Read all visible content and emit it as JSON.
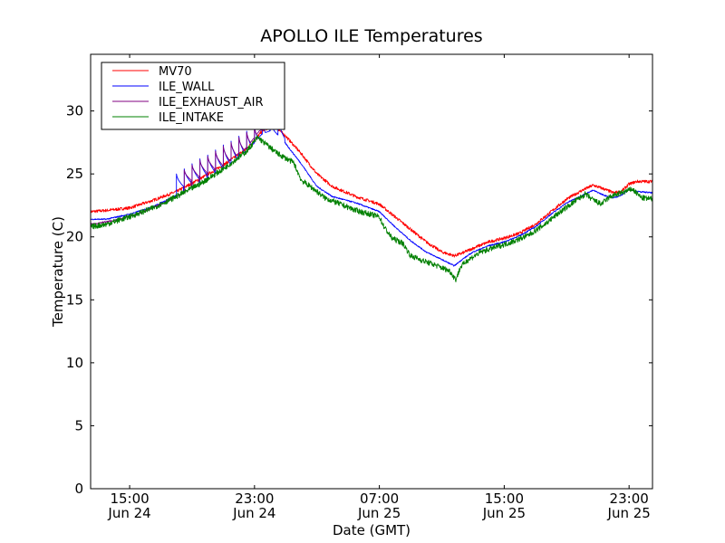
{
  "chart_data": {
    "type": "line",
    "title": "APOLLO ILE Temperatures",
    "xlabel": "Date (GMT)",
    "ylabel": "Temperature (C)",
    "xlim_hours": [
      12.5,
      48.5
    ],
    "ylim": [
      0,
      34.5
    ],
    "y_ticks": [
      0,
      5,
      10,
      15,
      20,
      25,
      30
    ],
    "x_ticks": [
      {
        "hour": 15,
        "time": "15:00",
        "date": "Jun 24"
      },
      {
        "hour": 23,
        "time": "23:00",
        "date": "Jun 24"
      },
      {
        "hour": 31,
        "time": "07:00",
        "date": "Jun 25"
      },
      {
        "hour": 39,
        "time": "15:00",
        "date": "Jun 25"
      },
      {
        "hour": 47,
        "time": "23:00",
        "date": "Jun 25"
      }
    ],
    "legend_position": "top-left",
    "series": [
      {
        "name": "MV70",
        "color": "#ff0000",
        "noise": 0.12,
        "points": [
          [
            12.5,
            22.0
          ],
          [
            13.5,
            22.1
          ],
          [
            15.0,
            22.3
          ],
          [
            16.5,
            22.9
          ],
          [
            18.0,
            23.6
          ],
          [
            19.5,
            24.6
          ],
          [
            21.0,
            25.7
          ],
          [
            22.5,
            27.0
          ],
          [
            23.5,
            28.4
          ],
          [
            24.2,
            28.9
          ],
          [
            25.0,
            28.0
          ],
          [
            26.0,
            26.6
          ],
          [
            27.0,
            25.0
          ],
          [
            28.0,
            24.0
          ],
          [
            29.5,
            23.2
          ],
          [
            31.0,
            22.6
          ],
          [
            32.0,
            21.6
          ],
          [
            33.0,
            20.6
          ],
          [
            34.0,
            19.6
          ],
          [
            35.0,
            18.8
          ],
          [
            35.8,
            18.5
          ],
          [
            36.3,
            18.7
          ],
          [
            37.0,
            19.1
          ],
          [
            38.0,
            19.6
          ],
          [
            39.0,
            19.9
          ],
          [
            40.0,
            20.3
          ],
          [
            41.0,
            21.0
          ],
          [
            42.0,
            22.0
          ],
          [
            43.0,
            23.0
          ],
          [
            44.0,
            23.7
          ],
          [
            44.7,
            24.1
          ],
          [
            45.4,
            23.8
          ],
          [
            46.0,
            23.5
          ],
          [
            46.5,
            23.6
          ],
          [
            47.0,
            24.2
          ],
          [
            47.5,
            24.4
          ],
          [
            48.5,
            24.4
          ]
        ]
      },
      {
        "name": "ILE_WALL",
        "color": "#0000ff",
        "noise": 0.05,
        "points": [
          [
            12.5,
            21.4
          ],
          [
            13.5,
            21.4
          ],
          [
            15.0,
            21.8
          ],
          [
            16.5,
            22.4
          ],
          [
            18.0,
            23.3
          ],
          [
            19.5,
            24.3
          ],
          [
            21.0,
            25.4
          ],
          [
            22.5,
            26.8
          ],
          [
            23.5,
            28.2
          ],
          [
            24.2,
            28.5
          ],
          [
            25.0,
            27.4
          ],
          [
            26.0,
            25.8
          ],
          [
            27.0,
            24.0
          ],
          [
            28.0,
            23.2
          ],
          [
            29.5,
            22.7
          ],
          [
            31.0,
            22.0
          ],
          [
            32.0,
            20.8
          ],
          [
            33.0,
            19.7
          ],
          [
            34.0,
            18.8
          ],
          [
            35.0,
            18.2
          ],
          [
            35.8,
            17.7
          ],
          [
            36.3,
            18.2
          ],
          [
            37.0,
            18.8
          ],
          [
            38.0,
            19.3
          ],
          [
            39.0,
            19.6
          ],
          [
            40.0,
            20.1
          ],
          [
            41.0,
            20.8
          ],
          [
            42.0,
            21.8
          ],
          [
            43.0,
            22.7
          ],
          [
            44.0,
            23.3
          ],
          [
            44.7,
            23.7
          ],
          [
            45.4,
            23.3
          ],
          [
            46.0,
            23.1
          ],
          [
            46.5,
            23.3
          ],
          [
            47.0,
            23.8
          ],
          [
            47.5,
            23.6
          ],
          [
            48.5,
            23.5
          ]
        ],
        "spikes": [
          {
            "hour": 18.0,
            "peak": 25.0,
            "base": 24.0
          },
          {
            "hour": 18.5,
            "peak": 25.4,
            "base": 24.3
          },
          {
            "hour": 19.0,
            "peak": 25.8,
            "base": 24.6
          },
          {
            "hour": 19.5,
            "peak": 26.2,
            "base": 24.9
          },
          {
            "hour": 20.0,
            "peak": 26.5,
            "base": 25.2
          },
          {
            "hour": 20.5,
            "peak": 26.9,
            "base": 25.5
          },
          {
            "hour": 21.0,
            "peak": 27.3,
            "base": 25.8
          },
          {
            "hour": 21.5,
            "peak": 27.6,
            "base": 26.1
          },
          {
            "hour": 22.0,
            "peak": 28.0,
            "base": 26.5
          },
          {
            "hour": 22.5,
            "peak": 28.4,
            "base": 26.9
          },
          {
            "hour": 23.0,
            "peak": 28.8,
            "base": 27.3
          },
          {
            "hour": 23.5,
            "peak": 29.2,
            "base": 27.7
          },
          {
            "hour": 24.0,
            "peak": 29.5,
            "base": 28.0
          },
          {
            "hour": 24.5,
            "peak": 29.5,
            "base": 27.8
          }
        ]
      },
      {
        "name": "ILE_EXHAUST_AIR",
        "color": "#800080",
        "noise": 0.06,
        "points": [
          [
            12.5,
            21.0
          ],
          [
            14.0,
            21.3
          ],
          [
            15.5,
            21.8
          ],
          [
            17.0,
            22.6
          ],
          [
            18.5,
            23.5
          ],
          [
            19.5,
            24.5
          ],
          [
            21.0,
            25.7
          ],
          [
            22.5,
            27.1
          ],
          [
            23.3,
            28.4
          ],
          [
            23.8,
            28.8
          ]
        ],
        "spikes": [
          {
            "hour": 18.5,
            "peak": 25.3,
            "base": 24.5
          },
          {
            "hour": 19.0,
            "peak": 25.7,
            "base": 24.8
          },
          {
            "hour": 19.5,
            "peak": 26.1,
            "base": 25.1
          },
          {
            "hour": 20.0,
            "peak": 26.4,
            "base": 25.4
          },
          {
            "hour": 20.5,
            "peak": 26.8,
            "base": 25.7
          },
          {
            "hour": 21.0,
            "peak": 27.2,
            "base": 26.0
          },
          {
            "hour": 21.5,
            "peak": 27.5,
            "base": 26.3
          },
          {
            "hour": 22.0,
            "peak": 27.9,
            "base": 26.7
          },
          {
            "hour": 22.5,
            "peak": 28.3,
            "base": 27.1
          },
          {
            "hour": 23.0,
            "peak": 28.7,
            "base": 27.5
          }
        ]
      },
      {
        "name": "ILE_INTAKE",
        "color": "#008000",
        "noise": 0.22,
        "points": [
          [
            12.5,
            20.8
          ],
          [
            13.5,
            21.0
          ],
          [
            15.0,
            21.6
          ],
          [
            16.5,
            22.3
          ],
          [
            18.0,
            23.2
          ],
          [
            19.5,
            24.2
          ],
          [
            21.0,
            25.4
          ],
          [
            22.5,
            26.8
          ],
          [
            23.2,
            27.9
          ],
          [
            23.8,
            27.3
          ],
          [
            24.5,
            26.6
          ],
          [
            25.5,
            25.9
          ],
          [
            26.0,
            24.5
          ],
          [
            26.8,
            23.8
          ],
          [
            27.5,
            23.1
          ],
          [
            28.5,
            22.6
          ],
          [
            29.5,
            22.1
          ],
          [
            31.0,
            21.6
          ],
          [
            31.3,
            20.8
          ],
          [
            31.8,
            19.9
          ],
          [
            32.5,
            19.5
          ],
          [
            33.0,
            18.5
          ],
          [
            33.8,
            18.1
          ],
          [
            34.5,
            17.8
          ],
          [
            35.5,
            17.3
          ],
          [
            35.9,
            16.6
          ],
          [
            36.2,
            17.6
          ],
          [
            36.6,
            18.1
          ],
          [
            37.5,
            18.8
          ],
          [
            38.5,
            19.2
          ],
          [
            39.5,
            19.6
          ],
          [
            40.5,
            20.1
          ],
          [
            41.5,
            20.9
          ],
          [
            42.5,
            21.9
          ],
          [
            43.5,
            22.8
          ],
          [
            44.2,
            23.4
          ],
          [
            44.6,
            23.0
          ],
          [
            45.2,
            22.6
          ],
          [
            45.8,
            23.2
          ],
          [
            46.3,
            23.4
          ],
          [
            47.2,
            23.8
          ],
          [
            47.8,
            23.1
          ],
          [
            48.5,
            23.0
          ]
        ]
      }
    ]
  }
}
